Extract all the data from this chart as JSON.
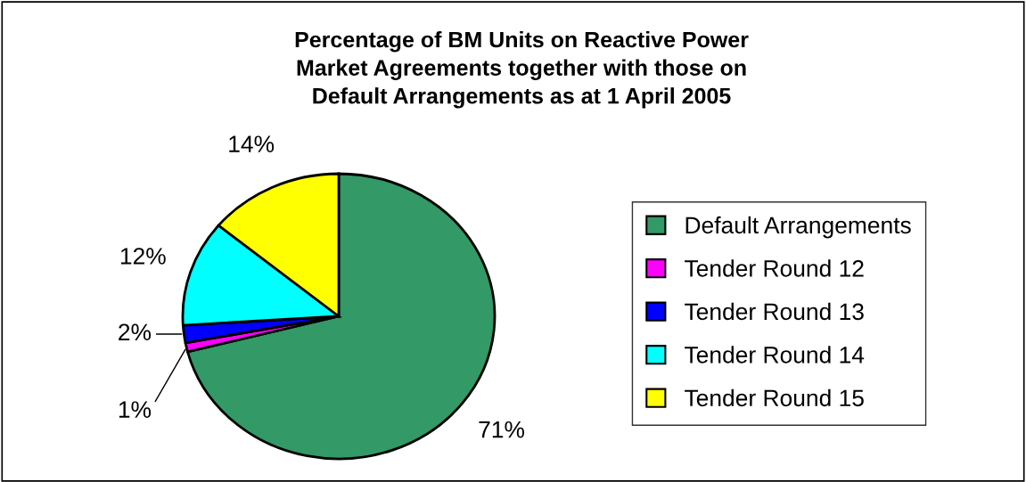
{
  "chart_data": {
    "type": "pie",
    "title": "Percentage of BM Units on Reactive Power\nMarket Agreements together with those on\nDefault Arrangements as at 1 April 2005",
    "categories": [
      "Default Arrangements",
      "Tender Round 12",
      "Tender Round 13",
      "Tender Round 14",
      "Tender Round 15"
    ],
    "values": [
      71,
      1,
      2,
      12,
      14
    ],
    "colors": [
      "#339966",
      "#ff00ff",
      "#0000ff",
      "#00ffff",
      "#ffff00"
    ],
    "value_labels": [
      "71%",
      "1%",
      "2%",
      "12%",
      "14%"
    ],
    "legend": "right"
  }
}
